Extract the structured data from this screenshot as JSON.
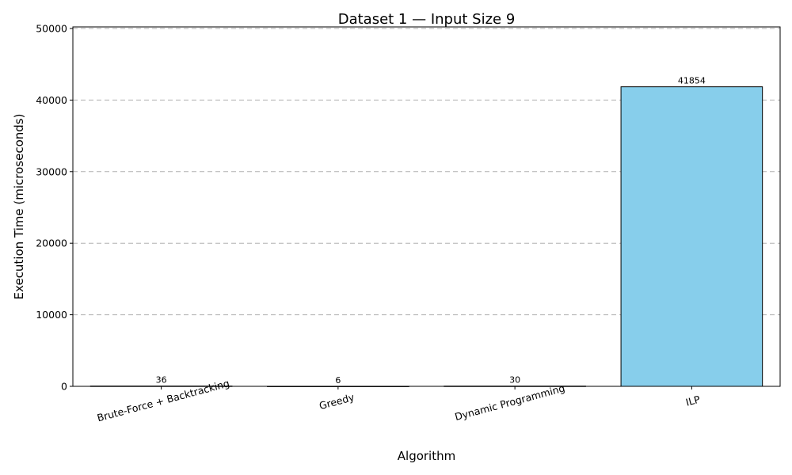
{
  "chart_data": {
    "type": "bar",
    "title": "Dataset 1 — Input Size 9",
    "xlabel": "Algorithm",
    "ylabel": "Execution Time (microseconds)",
    "categories": [
      "Brute-Force + Backtracking",
      "Greedy",
      "Dynamic Programming",
      "ILP"
    ],
    "values": [
      36,
      6,
      30,
      41854
    ],
    "data_labels": [
      "36",
      "6",
      "30",
      "41854"
    ],
    "ylim": [
      0,
      50221
    ],
    "yticks": [
      0,
      10000,
      20000,
      30000,
      40000,
      50000
    ],
    "ytick_labels": [
      "0",
      "10000",
      "20000",
      "30000",
      "40000",
      "50000"
    ],
    "bar_color": "#87ceeb",
    "bar_edge_color": "#000000",
    "grid": "y-dashed",
    "xtick_rotation": -15
  }
}
